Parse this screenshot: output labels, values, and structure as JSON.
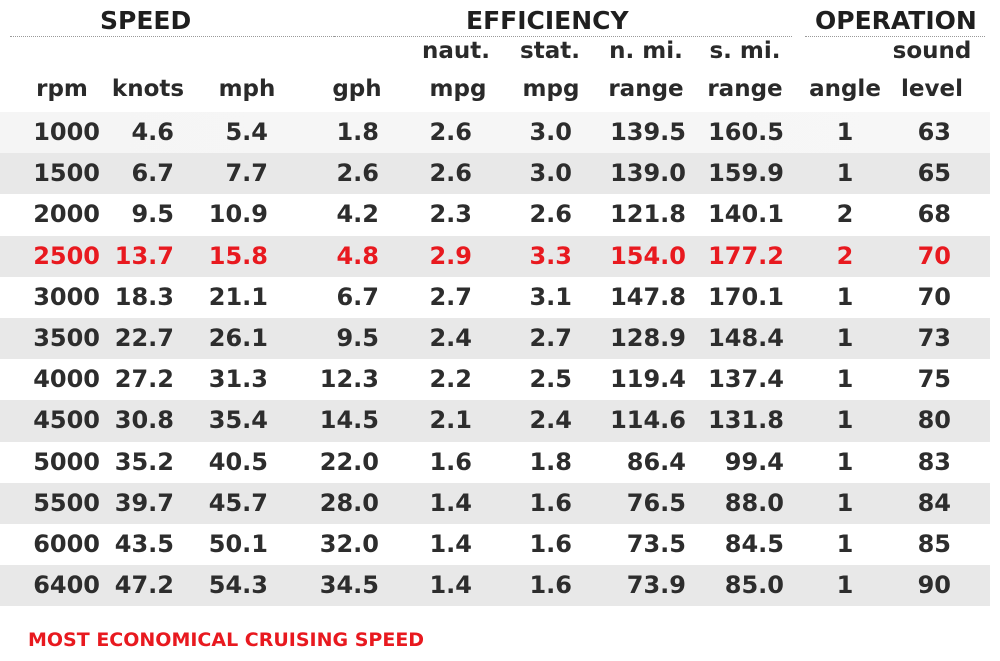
{
  "groups": {
    "speed": "SPEED",
    "efficiency": "EFFICIENCY",
    "operation": "OPERATION"
  },
  "columns": {
    "rpm": {
      "top": "",
      "bottom": "rpm"
    },
    "knots": {
      "top": "",
      "bottom": "knots"
    },
    "mph": {
      "top": "",
      "bottom": "mph"
    },
    "gph": {
      "top": "",
      "bottom": "gph"
    },
    "naut_mpg": {
      "top": "naut.",
      "bottom": "mpg"
    },
    "stat_mpg": {
      "top": "stat.",
      "bottom": "mpg"
    },
    "n_mi_range": {
      "top": "n. mi.",
      "bottom": "range"
    },
    "s_mi_range": {
      "top": "s. mi.",
      "bottom": "range"
    },
    "angle": {
      "top": "",
      "bottom": "angle"
    },
    "sound_level": {
      "top": "sound",
      "bottom": "level"
    }
  },
  "rows": [
    {
      "rpm": "1000",
      "knots": "4.6",
      "mph": "5.4",
      "gph": "1.8",
      "naut_mpg": "2.6",
      "stat_mpg": "3.0",
      "n_mi_range": "139.5",
      "s_mi_range": "160.5",
      "angle": "1",
      "sound_level": "63"
    },
    {
      "rpm": "1500",
      "knots": "6.7",
      "mph": "7.7",
      "gph": "2.6",
      "naut_mpg": "2.6",
      "stat_mpg": "3.0",
      "n_mi_range": "139.0",
      "s_mi_range": "159.9",
      "angle": "1",
      "sound_level": "65"
    },
    {
      "rpm": "2000",
      "knots": "9.5",
      "mph": "10.9",
      "gph": "4.2",
      "naut_mpg": "2.3",
      "stat_mpg": "2.6",
      "n_mi_range": "121.8",
      "s_mi_range": "140.1",
      "angle": "2",
      "sound_level": "68"
    },
    {
      "rpm": "2500",
      "knots": "13.7",
      "mph": "15.8",
      "gph": "4.8",
      "naut_mpg": "2.9",
      "stat_mpg": "3.3",
      "n_mi_range": "154.0",
      "s_mi_range": "177.2",
      "angle": "2",
      "sound_level": "70"
    },
    {
      "rpm": "3000",
      "knots": "18.3",
      "mph": "21.1",
      "gph": "6.7",
      "naut_mpg": "2.7",
      "stat_mpg": "3.1",
      "n_mi_range": "147.8",
      "s_mi_range": "170.1",
      "angle": "1",
      "sound_level": "70"
    },
    {
      "rpm": "3500",
      "knots": "22.7",
      "mph": "26.1",
      "gph": "9.5",
      "naut_mpg": "2.4",
      "stat_mpg": "2.7",
      "n_mi_range": "128.9",
      "s_mi_range": "148.4",
      "angle": "1",
      "sound_level": "73"
    },
    {
      "rpm": "4000",
      "knots": "27.2",
      "mph": "31.3",
      "gph": "12.3",
      "naut_mpg": "2.2",
      "stat_mpg": "2.5",
      "n_mi_range": "119.4",
      "s_mi_range": "137.4",
      "angle": "1",
      "sound_level": "75"
    },
    {
      "rpm": "4500",
      "knots": "30.8",
      "mph": "35.4",
      "gph": "14.5",
      "naut_mpg": "2.1",
      "stat_mpg": "2.4",
      "n_mi_range": "114.6",
      "s_mi_range": "131.8",
      "angle": "1",
      "sound_level": "80"
    },
    {
      "rpm": "5000",
      "knots": "35.2",
      "mph": "40.5",
      "gph": "22.0",
      "naut_mpg": "1.6",
      "stat_mpg": "1.8",
      "n_mi_range": "86.4",
      "s_mi_range": "99.4",
      "angle": "1",
      "sound_level": "83"
    },
    {
      "rpm": "5500",
      "knots": "39.7",
      "mph": "45.7",
      "gph": "28.0",
      "naut_mpg": "1.4",
      "stat_mpg": "1.6",
      "n_mi_range": "76.5",
      "s_mi_range": "88.0",
      "angle": "1",
      "sound_level": "84"
    },
    {
      "rpm": "6000",
      "knots": "43.5",
      "mph": "50.1",
      "gph": "32.0",
      "naut_mpg": "1.4",
      "stat_mpg": "1.6",
      "n_mi_range": "73.5",
      "s_mi_range": "84.5",
      "angle": "1",
      "sound_level": "85"
    },
    {
      "rpm": "6400",
      "knots": "47.2",
      "mph": "54.3",
      "gph": "34.5",
      "naut_mpg": "1.4",
      "stat_mpg": "1.6",
      "n_mi_range": "73.9",
      "s_mi_range": "85.0",
      "angle": "1",
      "sound_level": "90"
    }
  ],
  "highlight_rpm": "2500",
  "legend": "MOST ECONOMICAL CRUISING SPEED",
  "colors": {
    "highlight": "#e8191f",
    "row_shade": "#e8e8e8",
    "text": "#2d2d2d"
  }
}
